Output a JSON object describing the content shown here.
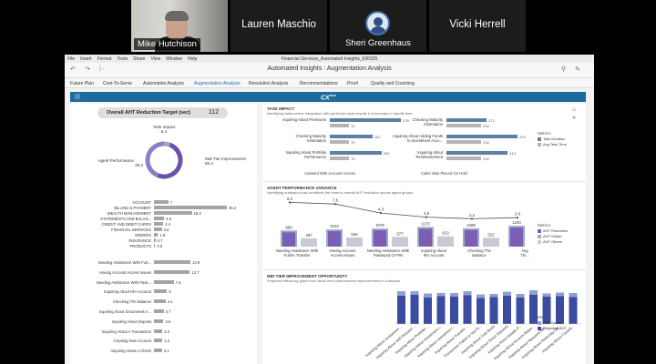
{
  "participants": [
    {
      "name": "Mike Hutchison"
    },
    {
      "name": "Lauren Maschio"
    },
    {
      "name": "Sheri Greenhaus"
    },
    {
      "name": "Vicki Herrell"
    }
  ],
  "os_menu": [
    "File",
    "Insert",
    "Format",
    "Tools",
    "Share",
    "View",
    "Window",
    "Help"
  ],
  "window_title": "Financial Services_Automated Insights_630325",
  "app_title": "Automated Insights : Augmentation Analysis",
  "tabs": [
    {
      "label": "Future Plan"
    },
    {
      "label": "Cost-To-Serve"
    },
    {
      "label": "Automation Analysis"
    },
    {
      "label": "Augmentation Analysis"
    },
    {
      "label": "Resolution Analysis"
    },
    {
      "label": "Recommendations"
    },
    {
      "label": "Proof"
    },
    {
      "label": "Quality and Coaching"
    }
  ],
  "active_tab": "Augmentation Analysis",
  "brand": {
    "logo": "CX",
    "logo_sup": "one"
  },
  "kpi": {
    "label": "Overall AHT Reduction Target (sec)",
    "value": "112"
  },
  "donut": {
    "segments": [
      {
        "label": "Task Impact",
        "value": 6.4,
        "color": "#9ea7c7"
      },
      {
        "label": "Mid-Tier Improvement",
        "value": 56.4,
        "color": "#6a52a8"
      },
      {
        "label": "Agent Performance",
        "value": 49.3,
        "color": "#8d7ec6"
      }
    ]
  },
  "segment_bars": [
    {
      "label": "ACCOUNT",
      "value": 7
    },
    {
      "label": "BILLING & PAYMENT",
      "value": 35.2
    },
    {
      "label": "WEALTH MANAGEMENT",
      "value": 18.3
    },
    {
      "label": "STATEMENTS AND BALAN...",
      "value": 4.9
    },
    {
      "label": "CREDIT AND DEBIT CARDS",
      "value": 4.4
    },
    {
      "label": "FINANCIAL SERVICES",
      "value": 3.8
    },
    {
      "label": "ORDERS",
      "value": 1.9
    },
    {
      "label": "INSURANCE",
      "value": 0.7
    },
    {
      "label": "PRODUCTS",
      "value": 0.6
    }
  ],
  "subtopic_bars": [
    {
      "label": "Needing Assistance With Furt...",
      "value": 13.9
    },
    {
      "label": "Having Account Access Issues",
      "value": 13.7
    },
    {
      "label": "Needing Assistance With Pass...",
      "value": 7.5
    },
    {
      "label": "Inquiring About IRA Account",
      "value": 5
    },
    {
      "label": "Checking The Balance",
      "value": 4.4
    },
    {
      "label": "Inquiring About Documents A...",
      "value": 3.7
    },
    {
      "label": "Inquiring About Deposit",
      "value": 3.6
    },
    {
      "label": "Inquiring About A Transaction",
      "value": 3.2
    },
    {
      "label": "Creating New Account",
      "value": 3.2
    },
    {
      "label": "Inquiring About A Check",
      "value": 3.1
    }
  ],
  "task_impact": {
    "title": "TASK IMPACT",
    "subtitle": "Identifying tasks where integration with particular tasks results in a increase in handle time",
    "legend_title": "Metrics",
    "legend": [
      {
        "label": "Task Duration",
        "color": "#5f7fa8"
      },
      {
        "label": "Avg Task Time",
        "color": "#b5b5b5"
      }
    ],
    "groups": [
      {
        "caption": "Assisted With Account Access",
        "items": [
          {
            "label": "Inquiring About Premiums",
            "duration": 278,
            "avg": 75
          },
          {
            "label": "Checking Maturity Information",
            "duration": 167,
            "avg": 75
          },
          {
            "label": "Inquiring About Portfolio Performance",
            "duration": 202,
            "avg": 75
          }
        ]
      },
      {
        "caption": "Caller Was Placed On Hold",
        "items": [
          {
            "label": "Checking Maturity Information",
            "duration": 271,
            "avg": 234
          },
          {
            "label": "Inquiring About Adding Funds to Investment Acco...",
            "duration": 479,
            "avg": 234
          },
          {
            "label": "Inquiring About Reimbursement",
            "duration": 413,
            "avg": 234
          }
        ]
      }
    ]
  },
  "agent_perf": {
    "title": "AGENT PERFORMANCE VARIANCE",
    "subtitle": "Identifying subtopics that contribute the most to overall AHT reduction across agent groups",
    "legend_title": "Metrics",
    "legend": [
      {
        "label": "AHT Reduction",
        "color": "#7a5fb3"
      },
      {
        "label": "AHT Outlier",
        "color": "#9aa9cc"
      },
      {
        "label": "AHT Others",
        "color": "#c9c9d6"
      }
    ],
    "line_values": [
      8.2,
      7.6,
      4.3,
      2.8,
      2.2,
      2.6
    ],
    "categories": [
      {
        "label": "Needing Assistance With Furthe Transfer",
        "outlier": 956,
        "others": 497
      },
      {
        "label": "Having Account Access Issues",
        "outlier": 1022,
        "others": 546
      },
      {
        "label": "Needing Assistance With Password Or PIN",
        "outlier": 1076,
        "others": 577
      },
      {
        "label": "Inquiring About IRA Account",
        "outlier": 1170,
        "others": 613
      },
      {
        "label": "Checking The Balance",
        "outlier": 1089,
        "others": 522
      },
      {
        "label": "Avg Thi...",
        "outlier": 1240,
        "others": 0
      }
    ]
  },
  "midtier": {
    "title": "MID-TIER IMPROVEMENT OPPORTUNITY",
    "subtitle": "Projected efficiency gains from tactic-level performance improvements in subtopics",
    "legend_title": "Metrics",
    "legend": [
      {
        "label": "AHT Saved",
        "color": "#8f9fd6"
      },
      {
        "label": "Projected AHT",
        "color": "#3a4ba0"
      }
    ],
    "categories": [
      "Inquiring About Investment ...",
      "Inquiring About Self-Directed ...",
      "Inquiring About Portfolio ...",
      "Inquiring About Investment I...",
      "Inquiring About Investment I...",
      "Inquiring About Transfer ...",
      "Transaction Failed or Not Pr...",
      "Inquiring About Cost Basis",
      "Inquiring About Direct Deposits",
      "Inquiring About Wealth P...",
      "Inquiring About Account Balan...",
      "Inquiring About Required Min...",
      "Inquiring About Reducing Sal...",
      "Inquiring About Custodi..."
    ],
    "projected": [
      62,
      64,
      58,
      61,
      60,
      63,
      57,
      59,
      62,
      58,
      64,
      60,
      61,
      59
    ],
    "saved": [
      10,
      8,
      9,
      7,
      8,
      9,
      8,
      7,
      9,
      8,
      10,
      7,
      8,
      9
    ]
  }
}
